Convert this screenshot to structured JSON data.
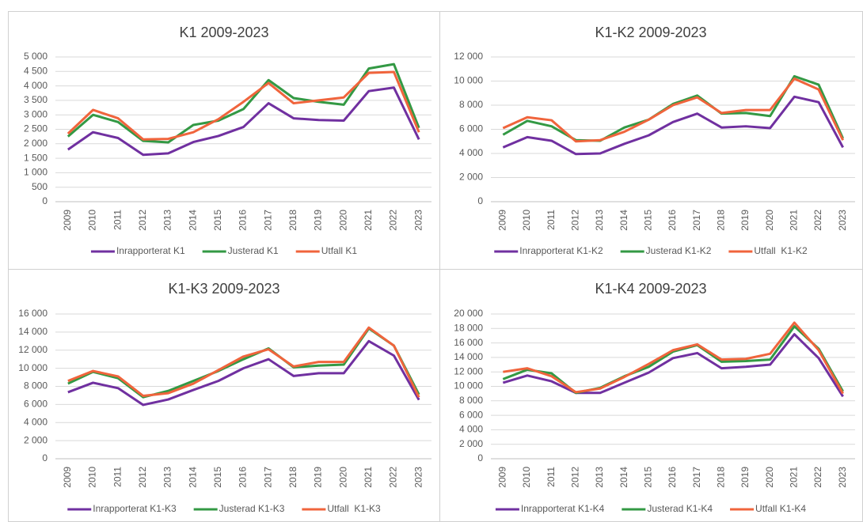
{
  "chart_data": [
    {
      "type": "line",
      "title": "K1 2009-2023",
      "categories": [
        "2009",
        "2010",
        "2011",
        "2012",
        "2013",
        "2014",
        "2015",
        "2016",
        "2017",
        "2018",
        "2019",
        "2020",
        "2021",
        "2022",
        "2023"
      ],
      "series": [
        {
          "name": "Inrapporterat K1",
          "color": "#7030a0",
          "values": [
            1800,
            2400,
            2200,
            1620,
            1670,
            2060,
            2270,
            2580,
            3400,
            2880,
            2820,
            2800,
            3820,
            3940,
            2150
          ]
        },
        {
          "name": "Justerad K1",
          "color": "#339944",
          "values": [
            2250,
            3000,
            2750,
            2100,
            2050,
            2650,
            2800,
            3200,
            4200,
            3580,
            3450,
            3350,
            4600,
            4750,
            2550
          ]
        },
        {
          "name": "Utfall K1",
          "color": "#f0643c",
          "values": [
            2350,
            3170,
            2880,
            2150,
            2170,
            2400,
            2850,
            3450,
            4100,
            3400,
            3500,
            3600,
            4450,
            4480,
            2400
          ]
        }
      ],
      "ylim": [
        0,
        5000
      ],
      "yticks": [
        0,
        500,
        {
          "value": 1000,
          "label": "1 000"
        },
        {
          "value": 1500,
          "label": "1 500"
        },
        {
          "value": 2000,
          "label": "2 000"
        },
        {
          "value": 2500,
          "label": "2 500"
        },
        {
          "value": 3000,
          "label": "3 000"
        },
        {
          "value": 3500,
          "label": "3 500"
        },
        {
          "value": 4000,
          "label": "4 000"
        },
        {
          "value": 4500,
          "label": "4 500"
        },
        {
          "value": 5000,
          "label": "5 000"
        }
      ],
      "grid": true
    },
    {
      "type": "line",
      "title": "K1-K2 2009-2023",
      "categories": [
        "2009",
        "2010",
        "2011",
        "2012",
        "2013",
        "2014",
        "2015",
        "2016",
        "2017",
        "2018",
        "2019",
        "2020",
        "2021",
        "2022",
        "2023"
      ],
      "series": [
        {
          "name": "Inrapporterat K1-K2",
          "color": "#7030a0",
          "values": [
            4500,
            5350,
            5050,
            3950,
            4000,
            4800,
            5500,
            6600,
            7300,
            6150,
            6250,
            6100,
            8700,
            8250,
            4500
          ]
        },
        {
          "name": "Justerad K1-K2",
          "color": "#339944",
          "values": [
            5550,
            6700,
            6250,
            5100,
            5050,
            6150,
            6800,
            8100,
            8800,
            7300,
            7350,
            7100,
            10400,
            9700,
            5250
          ]
        },
        {
          "name": "Utfall  K1-K2",
          "color": "#f0643c",
          "values": [
            6100,
            7000,
            6750,
            5000,
            5100,
            5800,
            6800,
            8000,
            8650,
            7350,
            7600,
            7600,
            10200,
            9300,
            5100
          ]
        }
      ],
      "ylim": [
        0,
        12000
      ],
      "yticks": [
        0,
        {
          "value": 2000,
          "label": "2 000"
        },
        {
          "value": 4000,
          "label": "4 000"
        },
        {
          "value": 6000,
          "label": "6 000"
        },
        {
          "value": 8000,
          "label": "8 000"
        },
        {
          "value": 10000,
          "label": "10 000"
        },
        {
          "value": 12000,
          "label": "12 000"
        }
      ],
      "grid": true
    },
    {
      "type": "line",
      "title": "K1-K3 2009-2023",
      "categories": [
        "2009",
        "2010",
        "2011",
        "2012",
        "2013",
        "2014",
        "2015",
        "2016",
        "2017",
        "2018",
        "2019",
        "2020",
        "2021",
        "2022",
        "2023"
      ],
      "series": [
        {
          "name": "Inrapporterat K1-K3",
          "color": "#7030a0",
          "values": [
            7350,
            8400,
            7800,
            5950,
            6550,
            7600,
            8600,
            10000,
            11000,
            9150,
            9450,
            9450,
            13000,
            11400,
            6500
          ]
        },
        {
          "name": "Justerad K1-K3",
          "color": "#339944",
          "values": [
            8300,
            9600,
            8900,
            6800,
            7500,
            8600,
            9700,
            11000,
            12200,
            10100,
            10300,
            10400,
            14400,
            12500,
            7100
          ]
        },
        {
          "name": "Utfall  K1-K3",
          "color": "#f0643c",
          "values": [
            8600,
            9700,
            9100,
            6950,
            7250,
            8300,
            9800,
            11300,
            12100,
            10200,
            10700,
            10700,
            14500,
            12500,
            6800
          ]
        }
      ],
      "ylim": [
        0,
        16000
      ],
      "yticks": [
        0,
        {
          "value": 2000,
          "label": "2 000"
        },
        {
          "value": 4000,
          "label": "4 000"
        },
        {
          "value": 6000,
          "label": "6 000"
        },
        {
          "value": 8000,
          "label": "8 000"
        },
        {
          "value": 10000,
          "label": "10 000"
        },
        {
          "value": 12000,
          "label": "12 000"
        },
        {
          "value": 14000,
          "label": "14 000"
        },
        {
          "value": 16000,
          "label": "16 000"
        }
      ],
      "grid": true
    },
    {
      "type": "line",
      "title": "K1-K4 2009-2023",
      "categories": [
        "2009",
        "2010",
        "2011",
        "2012",
        "2013",
        "2014",
        "2015",
        "2016",
        "2017",
        "2018",
        "2019",
        "2020",
        "2021",
        "2022",
        "2023"
      ],
      "series": [
        {
          "name": "Inrapporterat K1-K4",
          "color": "#7030a0",
          "values": [
            10500,
            11500,
            10700,
            9100,
            9100,
            10500,
            11900,
            13900,
            14600,
            12500,
            12700,
            13000,
            17200,
            13900,
            8600
          ]
        },
        {
          "name": "Justerad K1-K4",
          "color": "#339944",
          "values": [
            11000,
            12300,
            11800,
            9100,
            9800,
            11400,
            12700,
            14800,
            15700,
            13400,
            13500,
            13700,
            18300,
            15200,
            9300
          ]
        },
        {
          "name": "Utfall K1-K4",
          "color": "#f0643c",
          "values": [
            12000,
            12500,
            11400,
            9200,
            9700,
            11300,
            13100,
            15000,
            15800,
            13700,
            13800,
            14500,
            18800,
            15000,
            9000
          ]
        }
      ],
      "ylim": [
        0,
        20000
      ],
      "yticks": [
        0,
        {
          "value": 2000,
          "label": "2 000"
        },
        {
          "value": 4000,
          "label": "4 000"
        },
        {
          "value": 6000,
          "label": "6 000"
        },
        {
          "value": 8000,
          "label": "8 000"
        },
        {
          "value": 10000,
          "label": "10 000"
        },
        {
          "value": 12000,
          "label": "12 000"
        },
        {
          "value": 14000,
          "label": "14 000"
        },
        {
          "value": 16000,
          "label": "16 000"
        },
        {
          "value": 18000,
          "label": "18 000"
        },
        {
          "value": 20000,
          "label": "20 000"
        }
      ],
      "grid": true
    }
  ]
}
